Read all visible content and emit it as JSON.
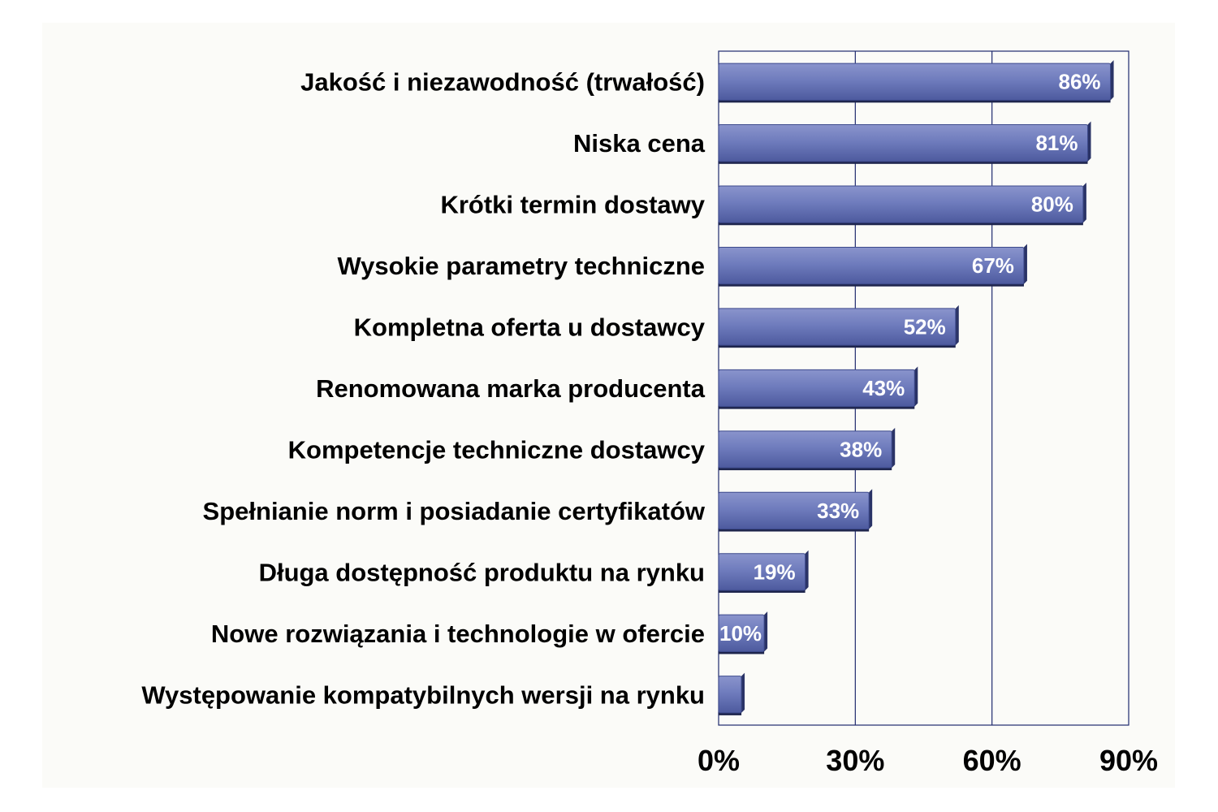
{
  "chart_data": {
    "type": "bar",
    "orientation": "horizontal",
    "categories": [
      "Jakość i niezawodność (trwałość)",
      "Niska cena",
      "Krótki termin dostawy",
      "Wysokie parametry techniczne",
      "Kompletna oferta u dostawcy",
      "Renomowana marka producenta",
      "Kompetencje techniczne dostawcy",
      "Spełnianie norm i posiadanie certyfikatów",
      "Długa dostępność produktu na rynku",
      "Nowe rozwiązania i technologie w ofercie",
      "Występowanie kompatybilnych wersji na rynku"
    ],
    "values": [
      86,
      81,
      80,
      67,
      52,
      43,
      38,
      33,
      19,
      10,
      5
    ],
    "data_labels": [
      "86%",
      "81%",
      "80%",
      "67%",
      "52%",
      "43%",
      "38%",
      "33%",
      "19%",
      "10%",
      ""
    ],
    "xlim": [
      0,
      90
    ],
    "x_ticks": [
      0,
      30,
      60,
      90
    ],
    "x_tick_labels": [
      "0%",
      "30%",
      "60%",
      "90%"
    ],
    "grid": "vertical",
    "bar_color": "#6b78b8",
    "title": "",
    "xlabel": "",
    "ylabel": ""
  }
}
